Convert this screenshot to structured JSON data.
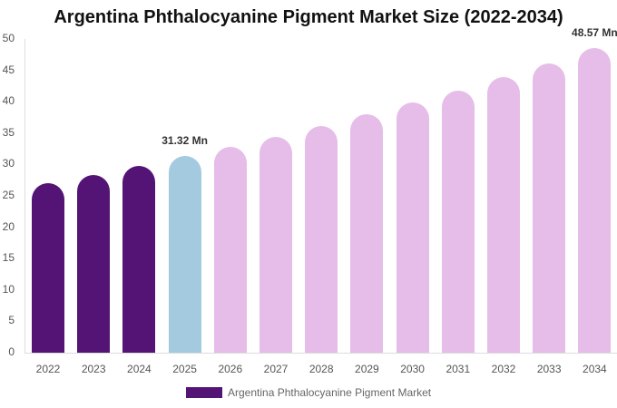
{
  "title": "Argentina Phthalocyanine Pigment Market Size (2022-2034)",
  "legend": {
    "label": "Argentina Phthalocyanine Pigment Market",
    "color": "#541475"
  },
  "colors": {
    "historical": "#541475",
    "current": "#a3cadf",
    "forecast": "#e6bce8"
  },
  "y_ticks": [
    "0",
    "5",
    "10",
    "15",
    "20",
    "25",
    "30",
    "35",
    "40",
    "45",
    "50"
  ],
  "data_labels": {
    "2025": "31.32 Mn",
    "2034": "48.57 Mn"
  },
  "chart_data": {
    "type": "bar",
    "title": "Argentina Phthalocyanine Pigment Market Size (2022-2034)",
    "xlabel": "",
    "ylabel": "",
    "ylim": [
      0,
      50
    ],
    "grid": false,
    "legend_position": "bottom",
    "categories": [
      "2022",
      "2023",
      "2024",
      "2025",
      "2026",
      "2027",
      "2028",
      "2029",
      "2030",
      "2031",
      "2032",
      "2033",
      "2034"
    ],
    "series": [
      {
        "name": "Argentina Phthalocyanine Pigment Market",
        "values": [
          27.0,
          28.3,
          29.8,
          31.32,
          32.8,
          34.4,
          36.1,
          38.0,
          39.9,
          41.8,
          43.9,
          46.1,
          48.57
        ]
      }
    ],
    "annotations": [
      {
        "category": "2025",
        "text": "31.32 Mn"
      },
      {
        "category": "2034",
        "text": "48.57 Mn"
      }
    ]
  }
}
